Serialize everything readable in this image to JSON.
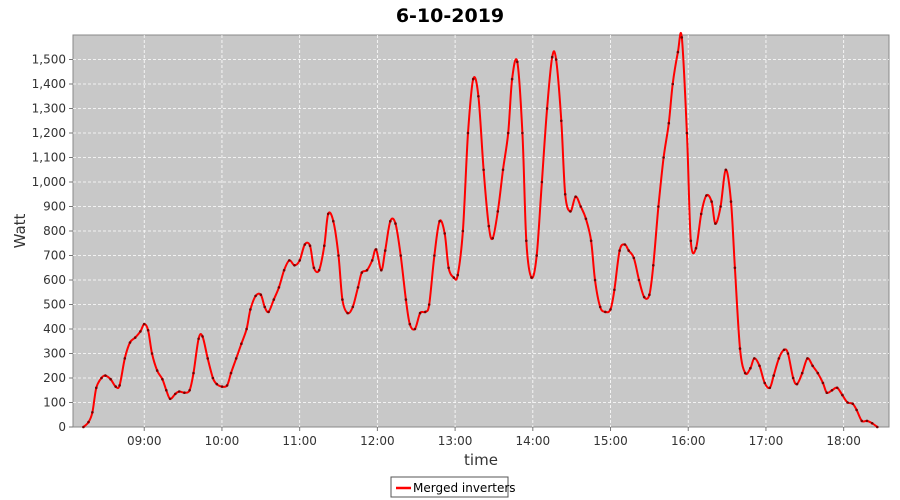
{
  "chart_data": {
    "type": "line",
    "title": "6-10-2019",
    "xlabel": "time",
    "ylabel": "Watt",
    "xlim": [
      "08:05",
      "18:35"
    ],
    "ylim": [
      0,
      1600
    ],
    "x_ticks": [
      "09:00",
      "10:00",
      "11:00",
      "12:00",
      "13:00",
      "14:00",
      "15:00",
      "16:00",
      "17:00",
      "18:00"
    ],
    "y_ticks": [
      "0",
      "100",
      "200",
      "300",
      "400",
      "500",
      "600",
      "700",
      "800",
      "900",
      "1,000",
      "1,100",
      "1,200",
      "1,300",
      "1,400",
      "1,500"
    ],
    "grid": true,
    "legend": "bottom-center",
    "colors": {
      "plot_background": "#c8c8c8",
      "grid": "#ffffff",
      "series": "#ff0000"
    },
    "series": [
      {
        "name": "Merged inverters",
        "color": "#ff0000",
        "points": [
          [
            "08:13",
            0
          ],
          [
            "08:17",
            20
          ],
          [
            "08:20",
            60
          ],
          [
            "08:23",
            160
          ],
          [
            "08:27",
            200
          ],
          [
            "08:30",
            210
          ],
          [
            "08:34",
            195
          ],
          [
            "08:38",
            165
          ],
          [
            "08:41",
            170
          ],
          [
            "08:45",
            280
          ],
          [
            "08:49",
            345
          ],
          [
            "08:53",
            365
          ],
          [
            "08:57",
            390
          ],
          [
            "09:00",
            420
          ],
          [
            "09:03",
            395
          ],
          [
            "09:06",
            300
          ],
          [
            "09:10",
            230
          ],
          [
            "09:14",
            195
          ],
          [
            "09:17",
            150
          ],
          [
            "09:20",
            115
          ],
          [
            "09:24",
            135
          ],
          [
            "09:27",
            145
          ],
          [
            "09:31",
            140
          ],
          [
            "09:35",
            150
          ],
          [
            "09:38",
            220
          ],
          [
            "09:42",
            360
          ],
          [
            "09:45",
            370
          ],
          [
            "09:49",
            280
          ],
          [
            "09:53",
            200
          ],
          [
            "09:56",
            175
          ],
          [
            "10:00",
            165
          ],
          [
            "10:04",
            170
          ],
          [
            "10:07",
            220
          ],
          [
            "10:11",
            280
          ],
          [
            "10:15",
            340
          ],
          [
            "10:19",
            400
          ],
          [
            "10:22",
            480
          ],
          [
            "10:26",
            535
          ],
          [
            "10:30",
            540
          ],
          [
            "10:33",
            490
          ],
          [
            "10:36",
            470
          ],
          [
            "10:40",
            520
          ],
          [
            "10:44",
            570
          ],
          [
            "10:48",
            640
          ],
          [
            "10:52",
            680
          ],
          [
            "10:56",
            660
          ],
          [
            "11:00",
            680
          ],
          [
            "11:04",
            745
          ],
          [
            "11:08",
            740
          ],
          [
            "11:11",
            650
          ],
          [
            "11:15",
            640
          ],
          [
            "11:19",
            740
          ],
          [
            "11:22",
            870
          ],
          [
            "11:26",
            840
          ],
          [
            "11:30",
            700
          ],
          [
            "11:33",
            520
          ],
          [
            "11:37",
            465
          ],
          [
            "11:41",
            490
          ],
          [
            "11:45",
            570
          ],
          [
            "11:48",
            630
          ],
          [
            "11:52",
            640
          ],
          [
            "11:56",
            680
          ],
          [
            "11:59",
            725
          ],
          [
            "12:03",
            640
          ],
          [
            "12:06",
            720
          ],
          [
            "12:10",
            840
          ],
          [
            "12:14",
            830
          ],
          [
            "12:18",
            700
          ],
          [
            "12:22",
            520
          ],
          [
            "12:25",
            420
          ],
          [
            "12:29",
            400
          ],
          [
            "12:33",
            465
          ],
          [
            "12:37",
            470
          ],
          [
            "12:40",
            500
          ],
          [
            "12:44",
            700
          ],
          [
            "12:48",
            840
          ],
          [
            "12:52",
            790
          ],
          [
            "12:55",
            650
          ],
          [
            "12:59",
            610
          ],
          [
            "13:02",
            620
          ],
          [
            "13:06",
            800
          ],
          [
            "13:10",
            1200
          ],
          [
            "13:14",
            1420
          ],
          [
            "13:18",
            1350
          ],
          [
            "13:22",
            1050
          ],
          [
            "13:26",
            820
          ],
          [
            "13:29",
            770
          ],
          [
            "13:33",
            880
          ],
          [
            "13:37",
            1050
          ],
          [
            "13:41",
            1200
          ],
          [
            "13:44",
            1420
          ],
          [
            "13:48",
            1490
          ],
          [
            "13:52",
            1200
          ],
          [
            "13:55",
            760
          ],
          [
            "13:59",
            610
          ],
          [
            "14:03",
            700
          ],
          [
            "14:07",
            1000
          ],
          [
            "14:11",
            1300
          ],
          [
            "14:15",
            1510
          ],
          [
            "14:18",
            1500
          ],
          [
            "14:22",
            1250
          ],
          [
            "14:25",
            950
          ],
          [
            "14:29",
            880
          ],
          [
            "14:33",
            940
          ],
          [
            "14:37",
            900
          ],
          [
            "14:41",
            850
          ],
          [
            "14:45",
            760
          ],
          [
            "14:48",
            600
          ],
          [
            "14:52",
            490
          ],
          [
            "14:56",
            470
          ],
          [
            "15:00",
            480
          ],
          [
            "15:03",
            560
          ],
          [
            "15:07",
            720
          ],
          [
            "15:11",
            745
          ],
          [
            "15:14",
            720
          ],
          [
            "15:18",
            690
          ],
          [
            "15:22",
            600
          ],
          [
            "15:26",
            530
          ],
          [
            "15:30",
            540
          ],
          [
            "15:33",
            660
          ],
          [
            "15:37",
            900
          ],
          [
            "15:41",
            1100
          ],
          [
            "15:45",
            1240
          ],
          [
            "15:48",
            1400
          ],
          [
            "15:52",
            1530
          ],
          [
            "15:55",
            1590
          ],
          [
            "15:59",
            1200
          ],
          [
            "16:02",
            760
          ],
          [
            "16:06",
            730
          ],
          [
            "16:10",
            870
          ],
          [
            "16:14",
            945
          ],
          [
            "16:18",
            920
          ],
          [
            "16:21",
            830
          ],
          [
            "16:25",
            900
          ],
          [
            "16:29",
            1050
          ],
          [
            "16:33",
            920
          ],
          [
            "16:36",
            650
          ],
          [
            "16:40",
            320
          ],
          [
            "16:44",
            220
          ],
          [
            "16:48",
            240
          ],
          [
            "16:51",
            280
          ],
          [
            "16:55",
            250
          ],
          [
            "16:59",
            180
          ],
          [
            "17:03",
            160
          ],
          [
            "17:06",
            210
          ],
          [
            "17:10",
            280
          ],
          [
            "17:14",
            315
          ],
          [
            "17:17",
            300
          ],
          [
            "17:21",
            200
          ],
          [
            "17:24",
            175
          ],
          [
            "17:28",
            220
          ],
          [
            "17:32",
            280
          ],
          [
            "17:36",
            250
          ],
          [
            "17:40",
            220
          ],
          [
            "17:44",
            180
          ],
          [
            "17:47",
            140
          ],
          [
            "17:51",
            150
          ],
          [
            "17:55",
            160
          ],
          [
            "17:59",
            130
          ],
          [
            "18:03",
            100
          ],
          [
            "18:07",
            95
          ],
          [
            "18:10",
            70
          ],
          [
            "18:14",
            25
          ],
          [
            "18:18",
            25
          ],
          [
            "18:22",
            15
          ],
          [
            "18:26",
            0
          ]
        ]
      }
    ]
  }
}
